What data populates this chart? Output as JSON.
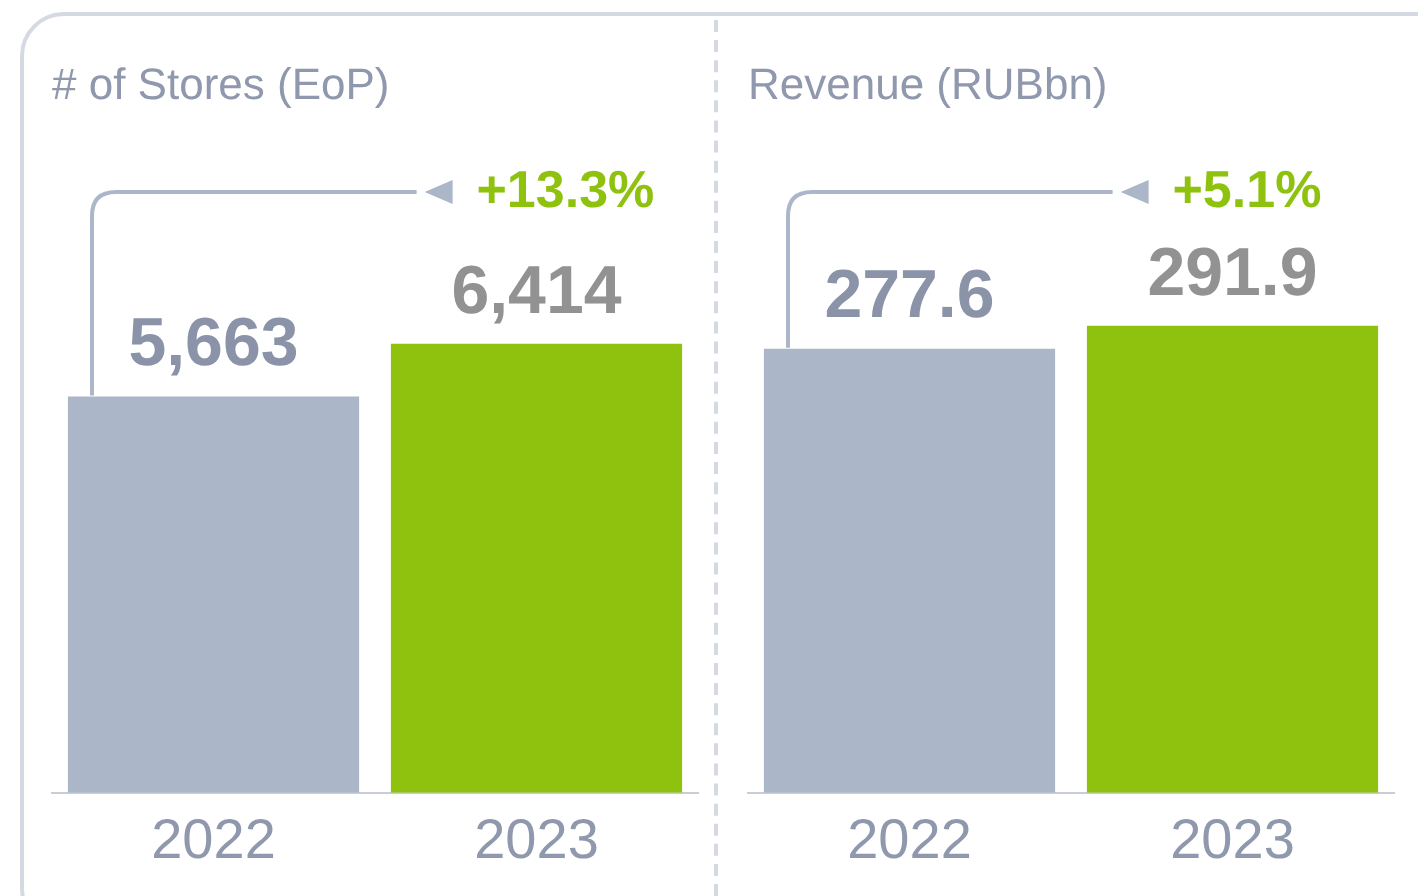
{
  "chart_data": [
    {
      "type": "bar",
      "title": "# of Stores (EoP)",
      "categories": [
        "2022",
        "2023"
      ],
      "values": [
        5663,
        6414
      ],
      "value_labels": [
        "5,663",
        "6,414"
      ],
      "colors": [
        "#abb6c8",
        "#8fc20f"
      ],
      "tick_labels": "x",
      "grid": false,
      "legend": false,
      "annotations": [
        "+13.3%"
      ]
    },
    {
      "type": "bar",
      "title": "Revenue (RUBbn)",
      "categories": [
        "2022",
        "2023"
      ],
      "values": [
        277.6,
        291.9
      ],
      "value_labels": [
        "277.6",
        "291.9"
      ],
      "colors": [
        "#abb6c8",
        "#8fc20f"
      ],
      "tick_labels": "x",
      "grid": false,
      "legend": false,
      "annotations": [
        "+5.1%"
      ]
    }
  ]
}
